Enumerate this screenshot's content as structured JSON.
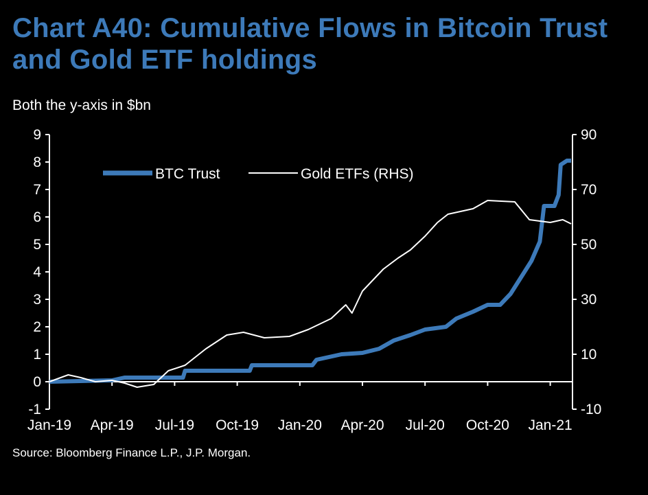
{
  "chart_data": {
    "type": "line",
    "title": "Chart A40: Cumulative Flows in Bitcoin Trust and Gold ETF holdings",
    "subtitle": "Both the y-axis in $bn",
    "source": "Source: Bloomberg Finance L.P., J.P. Morgan.",
    "x_unit": "months since Jan-19",
    "x_ticks": [
      {
        "label": "Jan-19",
        "x": 0
      },
      {
        "label": "Apr-19",
        "x": 3
      },
      {
        "label": "Jul-19",
        "x": 6
      },
      {
        "label": "Oct-19",
        "x": 9
      },
      {
        "label": "Jan-20",
        "x": 12
      },
      {
        "label": "Apr-20",
        "x": 15
      },
      {
        "label": "Jul-20",
        "x": 18
      },
      {
        "label": "Oct-20",
        "x": 21
      },
      {
        "label": "Jan-21",
        "x": 24
      }
    ],
    "xlim": [
      0,
      25
    ],
    "ylim_left": [
      -1,
      9
    ],
    "ylim_right": [
      -10,
      90
    ],
    "yticks_left": [
      "-1",
      "0",
      "1",
      "2",
      "3",
      "4",
      "5",
      "6",
      "7",
      "8",
      "9"
    ],
    "yticks_right": [
      "-10",
      "10",
      "30",
      "50",
      "70",
      "90"
    ],
    "legend": {
      "placement": "top-left",
      "entries": [
        "BTC Trust",
        "Gold ETFs (RHS)"
      ]
    },
    "series": [
      {
        "name": "BTC Trust",
        "axis": "left",
        "color": "#3d7ab9",
        "points": [
          [
            0,
            0
          ],
          [
            3,
            0.05
          ],
          [
            3.6,
            0.15
          ],
          [
            6.4,
            0.15
          ],
          [
            6.5,
            0.4
          ],
          [
            9.6,
            0.4
          ],
          [
            9.7,
            0.6
          ],
          [
            12.6,
            0.6
          ],
          [
            12.8,
            0.8
          ],
          [
            13.4,
            0.9
          ],
          [
            14,
            1.0
          ],
          [
            15,
            1.05
          ],
          [
            15.8,
            1.2
          ],
          [
            16.5,
            1.5
          ],
          [
            17.3,
            1.7
          ],
          [
            18,
            1.9
          ],
          [
            19,
            2.0
          ],
          [
            19.5,
            2.3
          ],
          [
            20.3,
            2.55
          ],
          [
            21,
            2.8
          ],
          [
            21.6,
            2.8
          ],
          [
            22.1,
            3.2
          ],
          [
            22.6,
            3.8
          ],
          [
            23.1,
            4.4
          ],
          [
            23.5,
            5.1
          ],
          [
            23.7,
            6.4
          ],
          [
            24.2,
            6.4
          ],
          [
            24.4,
            6.8
          ],
          [
            24.5,
            7.9
          ],
          [
            24.8,
            8.05
          ],
          [
            25,
            8.05
          ]
        ]
      },
      {
        "name": "Gold ETFs (RHS)",
        "axis": "right",
        "color": "#ffffff",
        "points": [
          [
            0,
            0
          ],
          [
            0.9,
            2.5
          ],
          [
            1.5,
            1.5
          ],
          [
            2.2,
            0
          ],
          [
            3,
            0.5
          ],
          [
            3.6,
            -0.5
          ],
          [
            4.2,
            -2
          ],
          [
            5,
            -1
          ],
          [
            5.7,
            4
          ],
          [
            6.5,
            6
          ],
          [
            7.5,
            12
          ],
          [
            8.5,
            17
          ],
          [
            9.3,
            18
          ],
          [
            10.3,
            16
          ],
          [
            11.5,
            16.5
          ],
          [
            12.4,
            19
          ],
          [
            13.5,
            23
          ],
          [
            14.2,
            28
          ],
          [
            14.5,
            25
          ],
          [
            15,
            33
          ],
          [
            16,
            41
          ],
          [
            16.7,
            45
          ],
          [
            17.3,
            48
          ],
          [
            18,
            53
          ],
          [
            18.6,
            58
          ],
          [
            19.1,
            61
          ],
          [
            20.3,
            63
          ],
          [
            21,
            66
          ],
          [
            22.3,
            65.5
          ],
          [
            23,
            59
          ],
          [
            24,
            58
          ],
          [
            24.6,
            59
          ],
          [
            25,
            57.5
          ]
        ]
      }
    ]
  }
}
